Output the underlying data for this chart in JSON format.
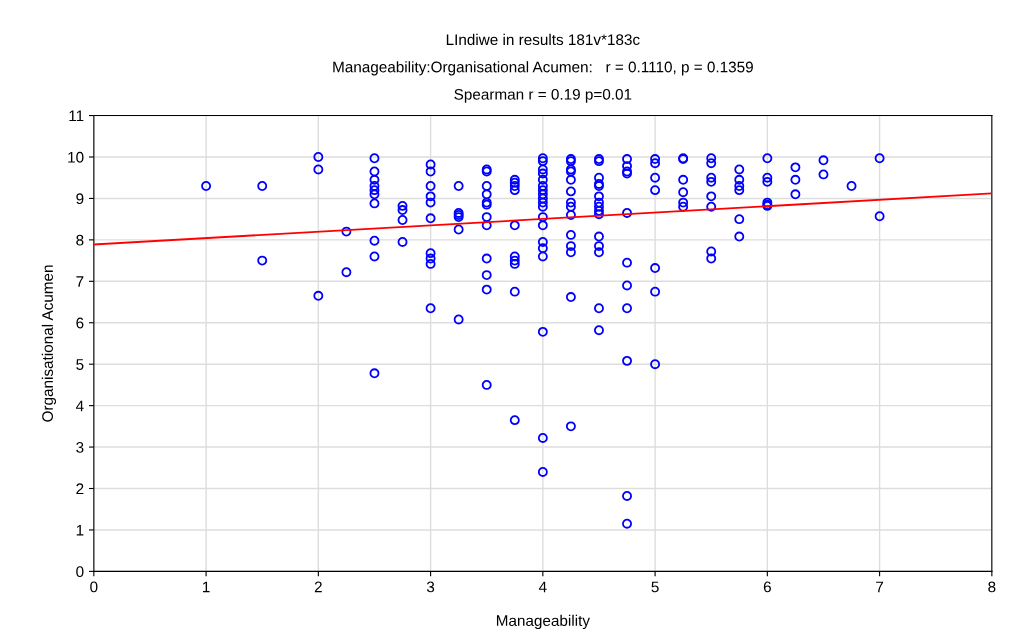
{
  "chart_data": {
    "type": "scatter",
    "title": "LIndiwe in results 181v*183c",
    "subtitle": "Manageability:Organisational Acumen:   r = 0.1110, p = 0.1359",
    "annotations": [
      "Spearman r = 0.19 p=0.01"
    ],
    "xlabel": "Manageability",
    "ylabel": "Organisational Acumen",
    "xlim": [
      0,
      8
    ],
    "ylim": [
      0,
      11
    ],
    "xticks": [
      0,
      1,
      2,
      3,
      4,
      5,
      6,
      7,
      8
    ],
    "yticks": [
      0,
      1,
      2,
      3,
      4,
      5,
      6,
      7,
      8,
      9,
      10,
      11
    ],
    "grid": true,
    "legend": false,
    "marker": "circle",
    "series": [
      {
        "color": "#0000ff",
        "x": [
          1,
          1.5,
          1.5,
          2,
          2,
          2,
          2.25,
          2.25,
          2.5,
          2.5,
          2.5,
          2.5,
          2.5,
          2.5,
          2.5,
          2.5,
          2.5,
          2.5,
          2.75,
          2.75,
          2.75,
          2.75,
          3,
          3,
          3,
          3,
          3,
          3,
          3,
          3,
          3,
          3,
          3.25,
          3.25,
          3.25,
          3.25,
          3.25,
          3.25,
          3.5,
          3.5,
          3.5,
          3.5,
          3.5,
          3.5,
          3.5,
          3.5,
          3.5,
          3.5,
          3.5,
          3.5,
          3.75,
          3.75,
          3.75,
          3.75,
          3.75,
          3.75,
          3.75,
          3.75,
          3.75,
          3.75,
          4,
          4,
          4,
          4,
          4,
          4,
          4,
          4,
          4,
          4,
          4,
          4,
          4,
          4,
          4,
          4,
          4,
          4,
          4,
          4.25,
          4.25,
          4.25,
          4.25,
          4.25,
          4.25,
          4.25,
          4.25,
          4.25,
          4.25,
          4.25,
          4.25,
          4.25,
          4.25,
          4.5,
          4.5,
          4.5,
          4.5,
          4.5,
          4.5,
          4.5,
          4.5,
          4.5,
          4.5,
          4.5,
          4.5,
          4.5,
          4.5,
          4.5,
          4.75,
          4.75,
          4.75,
          4.75,
          4.75,
          4.75,
          4.75,
          4.75,
          4.75,
          4.75,
          4.75,
          5,
          5,
          5,
          5,
          5,
          5,
          5,
          5.25,
          5.25,
          5.25,
          5.25,
          5.25,
          5.25,
          5.5,
          5.5,
          5.5,
          5.5,
          5.5,
          5.5,
          5.5,
          5.5,
          5.75,
          5.75,
          5.75,
          5.75,
          5.75,
          5.75,
          6,
          6,
          6,
          6,
          6,
          6,
          6.25,
          6.25,
          6.25,
          6.5,
          6.5,
          6.75,
          7,
          7
        ],
        "values": [
          9.3,
          9.3,
          7.5,
          10.0,
          9.7,
          6.65,
          8.2,
          7.22,
          9.97,
          9.65,
          9.45,
          9.3,
          9.2,
          9.1,
          8.88,
          7.98,
          7.6,
          4.78,
          8.82,
          8.72,
          8.48,
          7.95,
          9.82,
          9.65,
          9.3,
          9.05,
          8.9,
          8.52,
          7.68,
          7.55,
          7.42,
          6.35,
          9.3,
          8.65,
          8.6,
          8.55,
          8.25,
          6.08,
          9.7,
          9.65,
          9.3,
          9.1,
          8.9,
          8.85,
          8.55,
          8.35,
          7.55,
          7.15,
          6.8,
          4.5,
          9.45,
          9.38,
          9.3,
          9.2,
          8.35,
          7.6,
          7.5,
          7.42,
          6.75,
          3.65,
          9.97,
          9.9,
          9.7,
          9.6,
          9.45,
          9.3,
          9.2,
          9.1,
          9.0,
          8.9,
          8.8,
          8.55,
          8.35,
          7.95,
          7.8,
          7.6,
          5.78,
          3.22,
          2.4,
          9.95,
          9.9,
          9.7,
          9.65,
          9.45,
          9.17,
          8.9,
          8.8,
          8.6,
          8.12,
          7.85,
          7.7,
          6.62,
          3.5,
          9.95,
          9.9,
          9.5,
          9.35,
          9.3,
          9.05,
          8.9,
          8.8,
          8.7,
          8.62,
          8.08,
          7.85,
          7.7,
          6.35,
          5.82,
          9.95,
          9.78,
          9.65,
          9.6,
          8.65,
          7.45,
          6.9,
          6.35,
          5.08,
          1.82,
          1.15,
          9.95,
          9.85,
          9.5,
          9.2,
          7.32,
          6.75,
          5.0,
          9.97,
          9.95,
          9.45,
          9.15,
          8.9,
          8.8,
          9.97,
          9.85,
          9.5,
          9.4,
          9.05,
          8.8,
          7.72,
          7.55,
          9.7,
          9.45,
          9.3,
          9.2,
          8.5,
          8.08,
          9.97,
          9.5,
          9.4,
          8.9,
          8.85,
          8.82,
          9.75,
          9.45,
          9.1,
          9.92,
          9.58,
          9.3,
          9.97,
          8.57
        ]
      },
      {
        "type": "line",
        "color": "#ff0000",
        "marker": "none",
        "x": [
          0,
          8
        ],
        "values": [
          7.89,
          9.12
        ]
      }
    ]
  }
}
